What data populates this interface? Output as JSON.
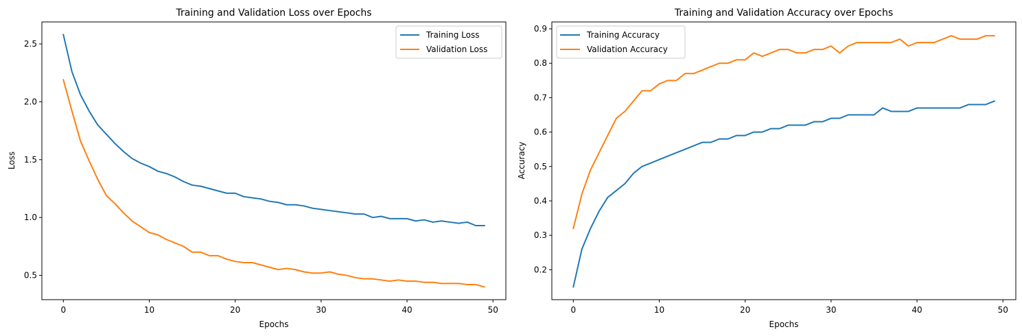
{
  "chart_data": [
    {
      "type": "line",
      "title": "Training and Validation Loss over Epochs",
      "xlabel": "Epochs",
      "ylabel": "Loss",
      "xlim": [
        -2.5,
        51.5
      ],
      "ylim": [
        0.29,
        2.69
      ],
      "xticks": [
        0,
        10,
        20,
        30,
        40,
        50
      ],
      "xtick_labels": [
        "0",
        "10",
        "20",
        "30",
        "40",
        "50"
      ],
      "yticks": [
        0.5,
        1.0,
        1.5,
        2.0,
        2.5
      ],
      "ytick_labels": [
        "0.5",
        "1.0",
        "1.5",
        "2.0",
        "2.5"
      ],
      "grid": false,
      "legend": "top-right",
      "x": [
        0,
        1,
        2,
        3,
        4,
        5,
        6,
        7,
        8,
        9,
        10,
        11,
        12,
        13,
        14,
        15,
        16,
        17,
        18,
        19,
        20,
        21,
        22,
        23,
        24,
        25,
        26,
        27,
        28,
        29,
        30,
        31,
        32,
        33,
        34,
        35,
        36,
        37,
        38,
        39,
        40,
        41,
        42,
        43,
        44,
        45,
        46,
        47,
        48,
        49
      ],
      "series": [
        {
          "name": "Training Loss",
          "color": "#1f77b4",
          "values": [
            2.58,
            2.26,
            2.06,
            1.92,
            1.8,
            1.72,
            1.64,
            1.57,
            1.51,
            1.47,
            1.44,
            1.4,
            1.38,
            1.35,
            1.31,
            1.28,
            1.27,
            1.25,
            1.23,
            1.21,
            1.21,
            1.18,
            1.17,
            1.16,
            1.14,
            1.13,
            1.11,
            1.11,
            1.1,
            1.08,
            1.07,
            1.06,
            1.05,
            1.04,
            1.03,
            1.03,
            1.0,
            1.01,
            0.99,
            0.99,
            0.99,
            0.97,
            0.98,
            0.96,
            0.97,
            0.96,
            0.95,
            0.96,
            0.93,
            0.93
          ]
        },
        {
          "name": "Validation Loss",
          "color": "#ff7f0e",
          "values": [
            2.19,
            1.92,
            1.66,
            1.49,
            1.33,
            1.19,
            1.12,
            1.04,
            0.97,
            0.92,
            0.87,
            0.85,
            0.81,
            0.78,
            0.75,
            0.7,
            0.7,
            0.67,
            0.67,
            0.64,
            0.62,
            0.61,
            0.61,
            0.59,
            0.57,
            0.55,
            0.56,
            0.55,
            0.53,
            0.52,
            0.52,
            0.53,
            0.51,
            0.5,
            0.48,
            0.47,
            0.47,
            0.46,
            0.45,
            0.46,
            0.45,
            0.45,
            0.44,
            0.44,
            0.43,
            0.43,
            0.43,
            0.42,
            0.42,
            0.4
          ]
        }
      ]
    },
    {
      "type": "line",
      "title": "Training and Validation Accuracy over Epochs",
      "xlabel": "Epochs",
      "ylabel": "Accuracy",
      "xlim": [
        -2.5,
        51.5
      ],
      "ylim": [
        0.113,
        0.92
      ],
      "xticks": [
        0,
        10,
        20,
        30,
        40,
        50
      ],
      "xtick_labels": [
        "0",
        "10",
        "20",
        "30",
        "40",
        "50"
      ],
      "yticks": [
        0.2,
        0.3,
        0.4,
        0.5,
        0.6,
        0.7,
        0.8,
        0.9
      ],
      "ytick_labels": [
        "0.2",
        "0.3",
        "0.4",
        "0.5",
        "0.6",
        "0.7",
        "0.8",
        "0.9"
      ],
      "grid": false,
      "legend": "top-left",
      "x": [
        0,
        1,
        2,
        3,
        4,
        5,
        6,
        7,
        8,
        9,
        10,
        11,
        12,
        13,
        14,
        15,
        16,
        17,
        18,
        19,
        20,
        21,
        22,
        23,
        24,
        25,
        26,
        27,
        28,
        29,
        30,
        31,
        32,
        33,
        34,
        35,
        36,
        37,
        38,
        39,
        40,
        41,
        42,
        43,
        44,
        45,
        46,
        47,
        48,
        49
      ],
      "series": [
        {
          "name": "Training Accuracy",
          "color": "#1f77b4",
          "values": [
            0.15,
            0.26,
            0.32,
            0.37,
            0.41,
            0.43,
            0.45,
            0.48,
            0.5,
            0.51,
            0.52,
            0.53,
            0.54,
            0.55,
            0.56,
            0.57,
            0.57,
            0.58,
            0.58,
            0.59,
            0.59,
            0.6,
            0.6,
            0.61,
            0.61,
            0.62,
            0.62,
            0.62,
            0.63,
            0.63,
            0.64,
            0.64,
            0.65,
            0.65,
            0.65,
            0.65,
            0.67,
            0.66,
            0.66,
            0.66,
            0.67,
            0.67,
            0.67,
            0.67,
            0.67,
            0.67,
            0.68,
            0.68,
            0.68,
            0.69
          ]
        },
        {
          "name": "Validation Accuracy",
          "color": "#ff7f0e",
          "values": [
            0.32,
            0.42,
            0.49,
            0.54,
            0.59,
            0.64,
            0.66,
            0.69,
            0.72,
            0.72,
            0.74,
            0.75,
            0.75,
            0.77,
            0.77,
            0.78,
            0.79,
            0.8,
            0.8,
            0.81,
            0.81,
            0.83,
            0.82,
            0.83,
            0.84,
            0.84,
            0.83,
            0.83,
            0.84,
            0.84,
            0.85,
            0.83,
            0.85,
            0.86,
            0.86,
            0.86,
            0.86,
            0.86,
            0.87,
            0.85,
            0.86,
            0.86,
            0.86,
            0.87,
            0.88,
            0.87,
            0.87,
            0.87,
            0.88,
            0.88
          ]
        }
      ]
    }
  ]
}
